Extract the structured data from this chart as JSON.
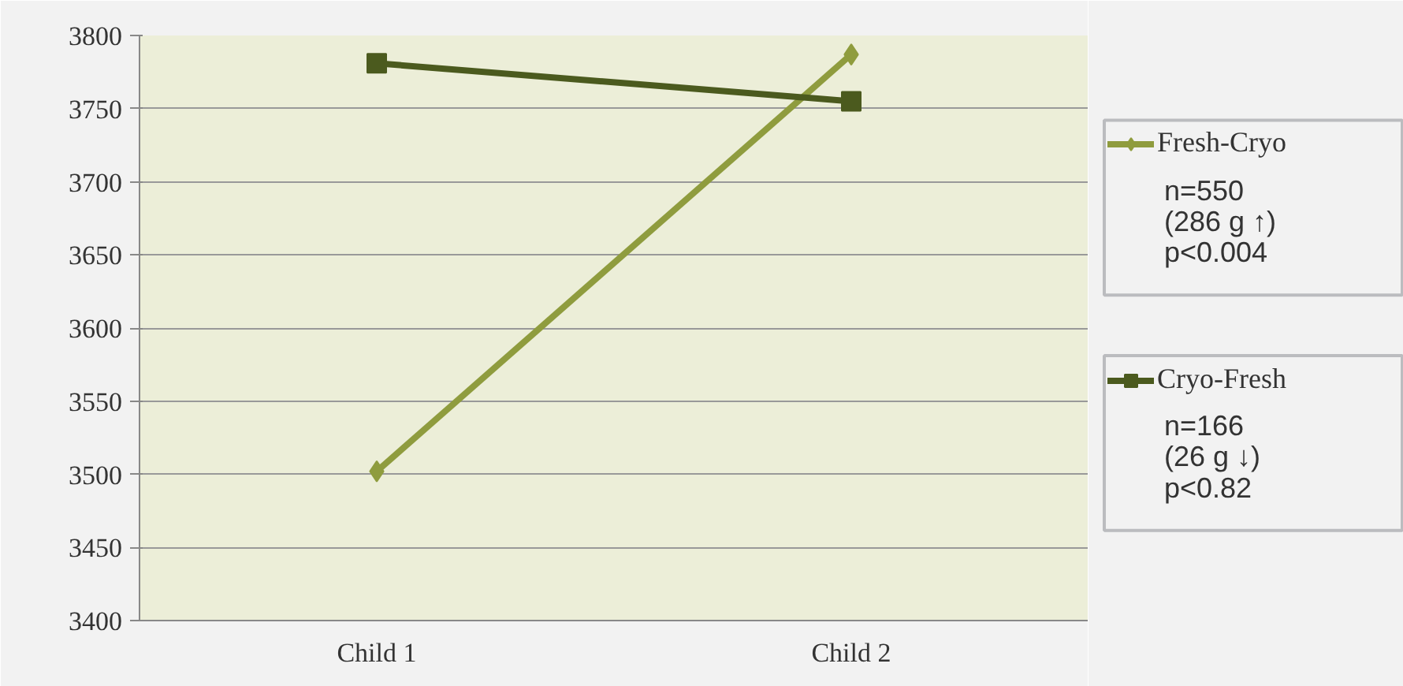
{
  "chart_data": {
    "type": "line",
    "categories": [
      "Child 1",
      "Child 2"
    ],
    "series": [
      {
        "name": "Fresh-Cryo",
        "color": "#8f9c3e",
        "marker": "diamond",
        "values": [
          3502,
          3787
        ]
      },
      {
        "name": "Cryo-Fresh",
        "color": "#4b5a1e",
        "marker": "square",
        "values": [
          3781,
          3755
        ]
      }
    ],
    "ylim": [
      3400,
      3800
    ],
    "yticks": [
      3400,
      3450,
      3500,
      3550,
      3600,
      3650,
      3700,
      3750,
      3800
    ],
    "grid": "y",
    "legend": "right",
    "annotations": [
      "n=550",
      "(286 g ↑)",
      "p<0.004",
      "n=166",
      "(26 g ↓)",
      "p<0.82"
    ]
  }
}
